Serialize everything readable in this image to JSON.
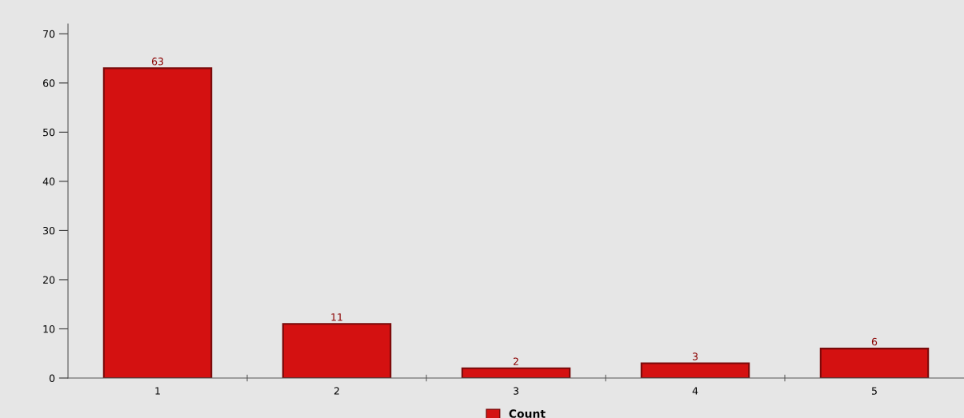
{
  "chart_data": {
    "type": "bar",
    "categories": [
      "1",
      "2",
      "3",
      "4",
      "5"
    ],
    "series": [
      {
        "name": "Count",
        "color": "#d41111",
        "values": [
          63,
          11,
          2,
          3,
          6
        ]
      }
    ],
    "ylim": [
      0,
      72
    ],
    "yticks": [
      0,
      10,
      20,
      30,
      40,
      50,
      60,
      70
    ],
    "data_labels": true,
    "legend": "bottom",
    "grid": false
  }
}
